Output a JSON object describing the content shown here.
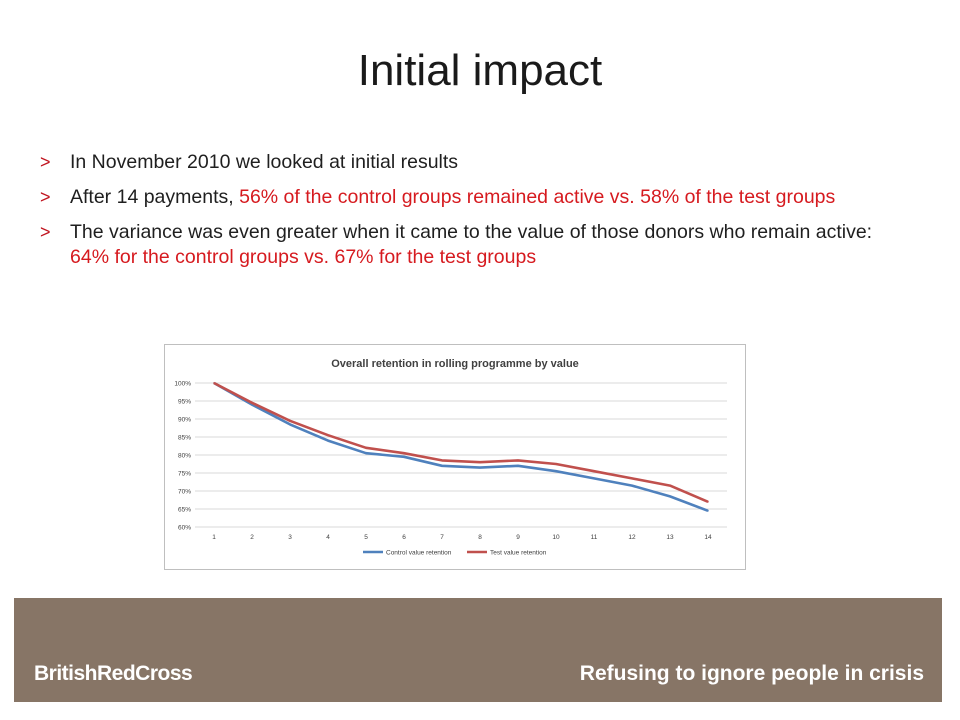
{
  "slide": {
    "title": "Initial impact",
    "bullets": [
      {
        "marker": ">",
        "parts": [
          {
            "text": "In November 2010 we looked at initial results",
            "highlight": false
          }
        ]
      },
      {
        "marker": ">",
        "parts": [
          {
            "text": "After 14 payments, ",
            "highlight": false
          },
          {
            "text": "56% of the control groups remained active vs. 58% of the test groups",
            "highlight": true
          }
        ]
      },
      {
        "marker": ">",
        "parts": [
          {
            "text": "The variance was even greater when it came to the value of those donors who remain active: ",
            "highlight": false
          },
          {
            "text": "64% for the control groups vs. 67% for the test groups",
            "highlight": true
          }
        ]
      }
    ],
    "highlight_color": "#d61a1f"
  },
  "chart_data": {
    "type": "line",
    "title": "Overall retention in rolling programme by value",
    "categories": [
      "1",
      "2",
      "3",
      "4",
      "5",
      "6",
      "7",
      "8",
      "9",
      "10",
      "11",
      "12",
      "13",
      "14"
    ],
    "y_ticks": [
      "60%",
      "65%",
      "70%",
      "75%",
      "80%",
      "85%",
      "90%",
      "95%",
      "100%"
    ],
    "ylim": [
      60,
      100
    ],
    "grid": true,
    "legend_position": "bottom",
    "series": [
      {
        "name": "Control value retention",
        "color": "#4f81bd",
        "values": [
          100,
          94,
          88.5,
          84,
          80.5,
          79.5,
          77,
          76.5,
          77,
          75.5,
          73.5,
          71.5,
          68.5,
          64.5
        ]
      },
      {
        "name": "Test value retention",
        "color": "#c0504d",
        "values": [
          100,
          94.5,
          89.5,
          85.5,
          82,
          80.5,
          78.5,
          78,
          78.5,
          77.5,
          75.5,
          73.5,
          71.5,
          67
        ]
      }
    ]
  },
  "footer": {
    "brand": "BritishRedCross",
    "tagline": "Refusing to ignore people in crisis"
  }
}
